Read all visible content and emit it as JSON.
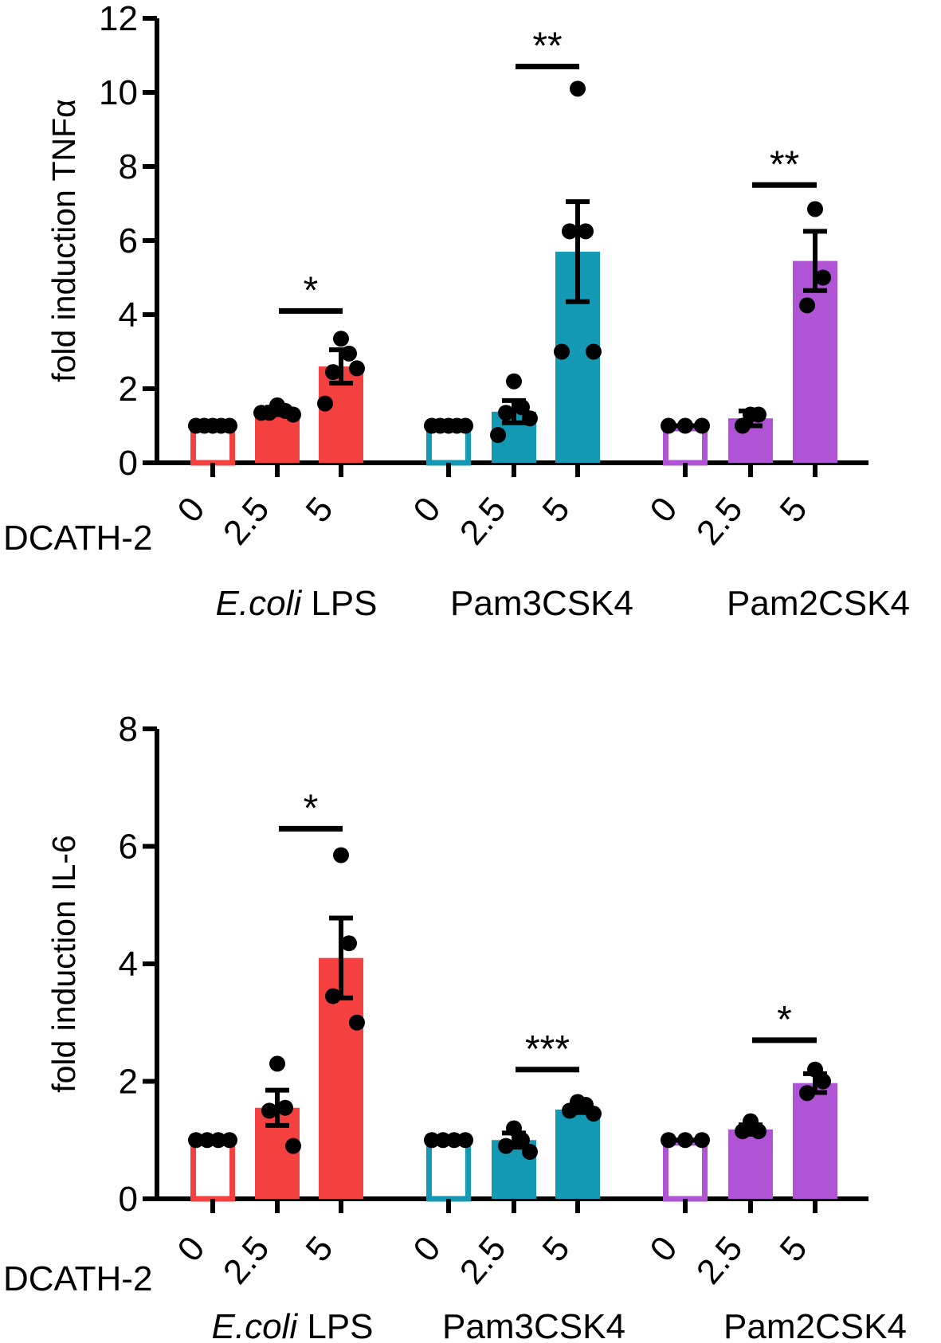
{
  "chart_data": [
    {
      "type": "bar",
      "name": "tnf",
      "ylabel": "fold induction TNFα",
      "ylim": [
        0,
        12
      ],
      "yticks": [
        0,
        2,
        4,
        6,
        8,
        10,
        12
      ],
      "treatment_label": "DCATH-2",
      "doses": [
        "0",
        "2.5",
        "5"
      ],
      "groups": [
        {
          "name": "E.coli LPS",
          "name_italic": "E.coli",
          "name_rest": " LPS",
          "color": "#f54040",
          "bars": [
            {
              "dose": "0",
              "mean": 1.0,
              "sem": 0,
              "points": [
                1,
                1,
                1,
                1,
                1
              ],
              "filled": false
            },
            {
              "dose": "2.5",
              "mean": 1.4,
              "sem": 0.1,
              "points": [
                1.55,
                1.4,
                1.35,
                1.3,
                1.35
              ],
              "filled": true
            },
            {
              "dose": "5",
              "mean": 2.6,
              "sem": 0.45,
              "points": [
                3.35,
                2.95,
                2.45,
                2.55,
                1.6
              ],
              "filled": true
            }
          ],
          "significance": {
            "label": "*",
            "y": 4.1
          }
        },
        {
          "name": "Pam3CSK4",
          "color": "#1399b3",
          "bars": [
            {
              "dose": "0",
              "mean": 1.0,
              "sem": 0,
              "points": [
                1,
                1,
                1,
                1,
                1
              ],
              "filled": false
            },
            {
              "dose": "2.5",
              "mean": 1.38,
              "sem": 0.3,
              "points": [
                2.2,
                1.5,
                1.35,
                1.2,
                0.75
              ],
              "filled": true
            },
            {
              "dose": "5",
              "mean": 5.7,
              "sem": 1.35,
              "points": [
                10.1,
                6.25,
                6.25,
                3.0,
                3.0
              ],
              "filled": true
            }
          ],
          "significance": {
            "label": "**",
            "y": 10.7
          }
        },
        {
          "name": "Pam2CSK4",
          "color": "#b054d6",
          "bars": [
            {
              "dose": "0",
              "mean": 1.0,
              "sem": 0,
              "points": [
                1,
                1,
                1
              ],
              "filled": false
            },
            {
              "dose": "2.5",
              "mean": 1.2,
              "sem": 0.2,
              "points": [
                1.3,
                1.3,
                1.0
              ],
              "filled": true
            },
            {
              "dose": "5",
              "mean": 5.45,
              "sem": 0.8,
              "points": [
                6.85,
                5.0,
                4.25
              ],
              "filled": true
            }
          ],
          "significance": {
            "label": "**",
            "y": 7.5
          }
        }
      ]
    },
    {
      "type": "bar",
      "name": "il6",
      "ylabel": "fold induction IL-6",
      "ylim": [
        0,
        8
      ],
      "yticks": [
        0,
        2,
        4,
        6,
        8
      ],
      "treatment_label": "DCATH-2",
      "doses": [
        "0",
        "2.5",
        "5"
      ],
      "groups": [
        {
          "name": "E.coli LPS",
          "name_italic": "E.coli",
          "name_rest": " LPS",
          "color": "#f54040",
          "bars": [
            {
              "dose": "0",
              "mean": 1.0,
              "sem": 0,
              "points": [
                1,
                1,
                1,
                1
              ],
              "filled": false
            },
            {
              "dose": "2.5",
              "mean": 1.55,
              "sem": 0.3,
              "points": [
                2.3,
                1.55,
                1.5,
                0.9
              ],
              "filled": true
            },
            {
              "dose": "5",
              "mean": 4.1,
              "sem": 0.68,
              "points": [
                5.85,
                4.35,
                3.45,
                3.0
              ],
              "filled": true
            }
          ],
          "significance": {
            "label": "*",
            "y": 6.3
          }
        },
        {
          "name": "Pam3CSK4",
          "color": "#1399b3",
          "bars": [
            {
              "dose": "0",
              "mean": 1.0,
              "sem": 0,
              "points": [
                1,
                1,
                1,
                1
              ],
              "filled": false
            },
            {
              "dose": "2.5",
              "mean": 1.0,
              "sem": 0.12,
              "points": [
                1.2,
                1.0,
                0.9,
                0.8
              ],
              "filled": true
            },
            {
              "dose": "5",
              "mean": 1.52,
              "sem": 0.05,
              "points": [
                1.65,
                1.6,
                1.5,
                1.45
              ],
              "filled": true
            }
          ],
          "significance": {
            "label": "***",
            "y": 2.2
          }
        },
        {
          "name": "Pam2CSK4",
          "color": "#b054d6",
          "bars": [
            {
              "dose": "0",
              "mean": 1.0,
              "sem": 0,
              "points": [
                1,
                1,
                1
              ],
              "filled": false
            },
            {
              "dose": "2.5",
              "mean": 1.18,
              "sem": 0.08,
              "points": [
                1.32,
                1.15,
                1.15
              ],
              "filled": true
            },
            {
              "dose": "5",
              "mean": 1.97,
              "sem": 0.16,
              "points": [
                2.2,
                2.0,
                1.8
              ],
              "filled": true
            }
          ],
          "significance": {
            "label": "*",
            "y": 2.7
          }
        }
      ]
    }
  ]
}
